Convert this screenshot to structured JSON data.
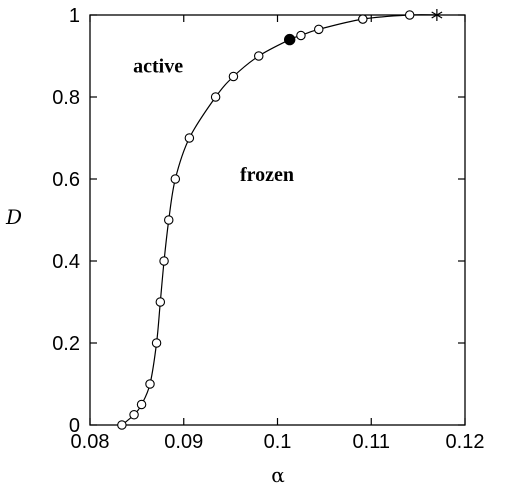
{
  "chart_data": {
    "type": "scatter",
    "xlabel": "α",
    "ylabel": "D",
    "xlim": [
      0.08,
      0.12
    ],
    "ylim": [
      0,
      1
    ],
    "xticks": [
      "0.08",
      "0.09",
      "0.1",
      "0.11",
      "0.12"
    ],
    "xtick_values": [
      0.08,
      0.09,
      0.1,
      0.11,
      0.12
    ],
    "yticks": [
      "0",
      "0.2",
      "0.4",
      "0.6",
      "0.8",
      "1"
    ],
    "ytick_values": [
      0,
      0.2,
      0.4,
      0.6,
      0.8,
      1
    ],
    "grid": false,
    "annotations": [
      {
        "text": "active",
        "x": 0.0846,
        "y": 0.86
      },
      {
        "text": "frozen",
        "x": 0.096,
        "y": 0.595
      }
    ],
    "series": [
      {
        "marker": "open-circle",
        "x": [
          0.0834,
          0.0847,
          0.0855,
          0.0864,
          0.0871,
          0.0875,
          0.0879,
          0.0884,
          0.0891,
          0.0906,
          0.0934,
          0.0953,
          0.098,
          0.1025,
          0.1044,
          0.1091,
          0.1141
        ],
        "y": [
          0.0,
          0.025,
          0.05,
          0.1,
          0.2,
          0.3,
          0.4,
          0.5,
          0.6,
          0.7,
          0.8,
          0.85,
          0.9,
          0.95,
          0.965,
          0.99,
          1.0
        ]
      },
      {
        "marker": "filled-circle",
        "x": [
          0.1013
        ],
        "y": [
          0.94
        ]
      },
      {
        "marker": "star",
        "x": [
          0.117
        ],
        "y": [
          1.0
        ]
      }
    ],
    "curve": {
      "x": [
        0.0834,
        0.0847,
        0.0855,
        0.0864,
        0.0871,
        0.0875,
        0.0879,
        0.0884,
        0.0891,
        0.0906,
        0.0934,
        0.0953,
        0.098,
        0.1013,
        0.1025,
        0.1044,
        0.1091,
        0.1141,
        0.117
      ],
      "y": [
        0.0,
        0.025,
        0.05,
        0.1,
        0.2,
        0.3,
        0.4,
        0.5,
        0.6,
        0.7,
        0.8,
        0.85,
        0.9,
        0.94,
        0.95,
        0.965,
        0.99,
        1.0,
        1.0
      ]
    }
  }
}
